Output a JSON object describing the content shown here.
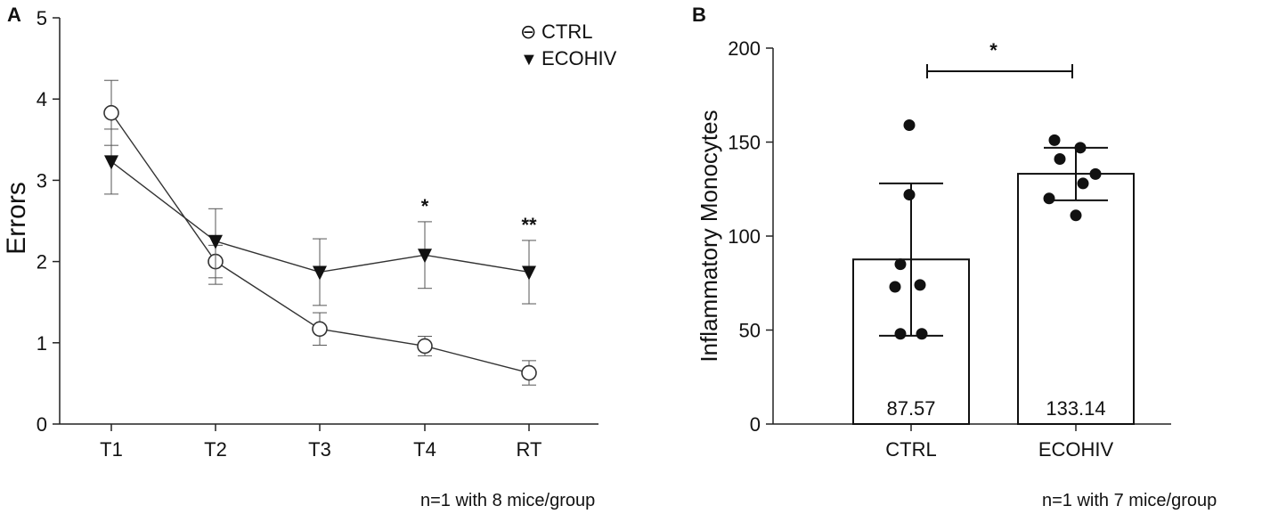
{
  "chart_data": [
    {
      "panel": "A",
      "type": "line",
      "ylabel": "Errors",
      "xlabel": "",
      "categories": [
        "T1",
        "T2",
        "T3",
        "T4",
        "RT"
      ],
      "ylim": [
        0,
        5
      ],
      "yticks": [
        "0",
        "1",
        "2",
        "3",
        "4",
        "5"
      ],
      "series": [
        {
          "name": "CTRL",
          "marker": "open-circle",
          "legend_glyph": "⊖",
          "values": [
            3.83,
            2.0,
            1.17,
            0.96,
            0.63
          ],
          "err_low": [
            3.43,
            1.8,
            0.97,
            0.84,
            0.48
          ],
          "err_high": [
            4.23,
            2.2,
            1.37,
            1.08,
            0.78
          ]
        },
        {
          "name": "ECOHIV",
          "marker": "filled-triangle-down",
          "legend_glyph": "▼",
          "values": [
            3.23,
            2.25,
            1.87,
            2.08,
            1.87
          ],
          "err_low": [
            2.83,
            1.72,
            1.46,
            1.67,
            1.48
          ],
          "err_high": [
            3.63,
            2.65,
            2.28,
            2.49,
            2.26
          ]
        }
      ],
      "significance": [
        {
          "category": "T4",
          "label": "*"
        },
        {
          "category": "RT",
          "label": "**"
        }
      ],
      "legend_position": "top-right",
      "note": "n=1 with 8 mice/group"
    },
    {
      "panel": "B",
      "type": "bar",
      "ylabel": "Inflammatory Monocytes",
      "categories": [
        "CTRL",
        "ECOHIV"
      ],
      "values": [
        87.57,
        133.14
      ],
      "value_labels": [
        "87.57",
        "133.14"
      ],
      "err_low": [
        47,
        119
      ],
      "err_high": [
        128,
        147
      ],
      "ylim": [
        0,
        200
      ],
      "yticks": [
        "0",
        "50",
        "100",
        "150",
        "200"
      ],
      "points": [
        [
          159,
          122,
          85,
          74,
          73,
          48,
          48
        ],
        [
          151,
          147,
          141,
          133,
          128,
          120,
          111
        ]
      ],
      "significance": [
        {
          "between": [
            "CTRL",
            "ECOHIV"
          ],
          "label": "*"
        }
      ],
      "note": "n=1 with 7 mice/group"
    }
  ]
}
